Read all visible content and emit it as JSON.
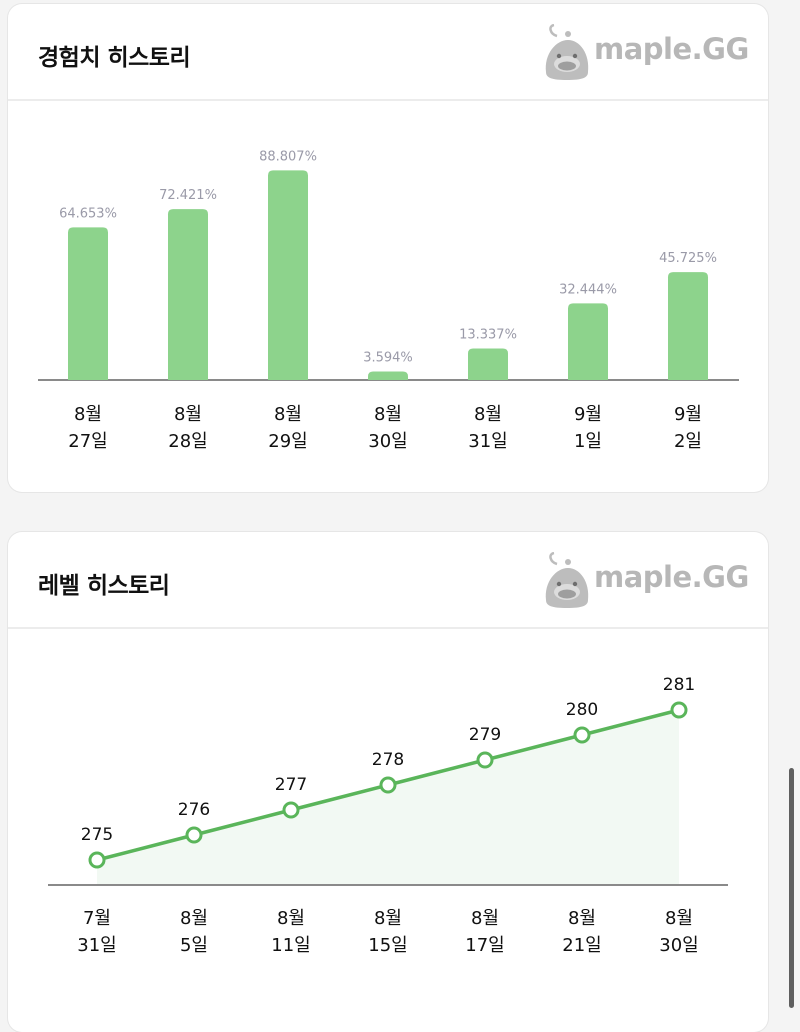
{
  "exp_card": {
    "title": "경험치 히스토리",
    "brand": "maple.GG"
  },
  "level_card": {
    "title": "레벨 히스토리",
    "brand": "maple.GG"
  },
  "colors": {
    "bar": "#8dd38c",
    "line": "#5ab55a",
    "area": "#f2f9f3",
    "baseline": "#8a8a8a",
    "value_label": "#9a9aa8",
    "brand_gray": "#b7b7b7"
  },
  "icons": {
    "brand_logo": "slime-mascot-icon"
  },
  "chart_data": [
    {
      "type": "bar",
      "title": "경험치 히스토리",
      "categories": [
        [
          "8월",
          "27일"
        ],
        [
          "8월",
          "28일"
        ],
        [
          "8월",
          "29일"
        ],
        [
          "8월",
          "30일"
        ],
        [
          "8월",
          "31일"
        ],
        [
          "9월",
          "1일"
        ],
        [
          "9월",
          "2일"
        ]
      ],
      "values": [
        64.653,
        72.421,
        88.807,
        3.594,
        13.337,
        32.444,
        45.725
      ],
      "value_labels": [
        "64.653%",
        "72.421%",
        "88.807%",
        "3.594%",
        "13.337%",
        "32.444%",
        "45.725%"
      ],
      "ylim": [
        0,
        100
      ],
      "grid": false,
      "legend": "none"
    },
    {
      "type": "line",
      "title": "레벨 히스토리",
      "categories": [
        [
          "7월",
          "31일"
        ],
        [
          "8월",
          "5일"
        ],
        [
          "8월",
          "11일"
        ],
        [
          "8월",
          "15일"
        ],
        [
          "8월",
          "17일"
        ],
        [
          "8월",
          "21일"
        ],
        [
          "8월",
          "30일"
        ]
      ],
      "values": [
        275,
        276,
        277,
        278,
        279,
        280,
        281
      ],
      "value_labels": [
        "275",
        "276",
        "277",
        "278",
        "279",
        "280",
        "281"
      ],
      "area_fill": true,
      "grid": false,
      "legend": "none"
    }
  ]
}
